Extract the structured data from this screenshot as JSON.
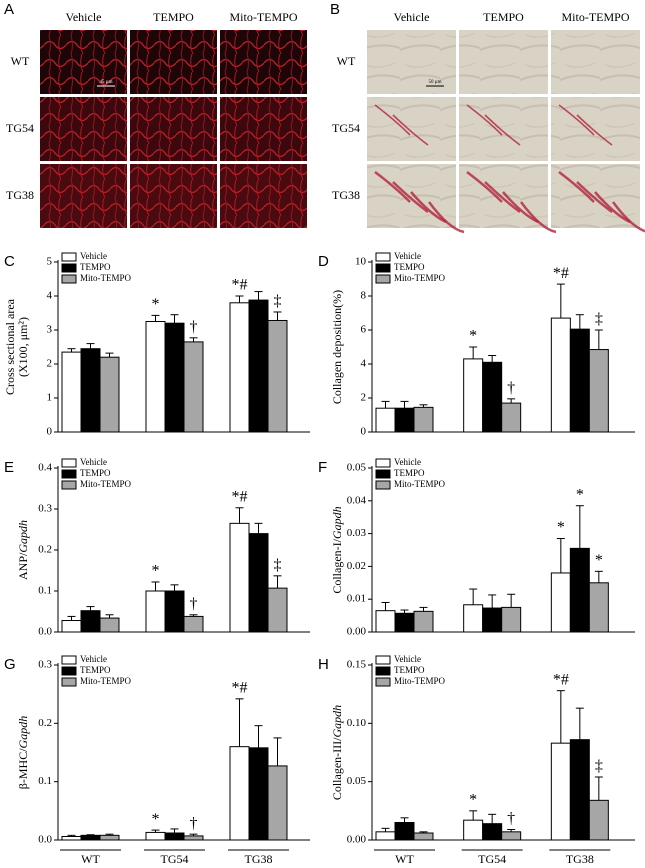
{
  "micrographs": [
    {
      "letter": "A",
      "columns": [
        "Vehicle",
        "TEMPO",
        "Mito-TEMPO"
      ],
      "rows": [
        "WT",
        "TG54",
        "TG38"
      ],
      "scale_bar": "45 µm"
    },
    {
      "letter": "B",
      "columns": [
        "Vehicle",
        "TEMPO",
        "Mito-TEMPO"
      ],
      "rows": [
        "WT",
        "TG54",
        "TG38"
      ],
      "scale_bar": "50 µm"
    }
  ],
  "chart_data": [
    {
      "type": "bar",
      "letter": "C",
      "ylabel": [
        [
          {
            "text": "Cross sectional area"
          }
        ],
        [
          {
            "text": "(X100, μm²)"
          }
        ]
      ],
      "categories": [
        null,
        null,
        null
      ],
      "ylim": [
        0,
        5
      ],
      "yticks": [
        0,
        1,
        2,
        3,
        4,
        5
      ],
      "legend": "upper left",
      "series": [
        {
          "name": "Vehicle",
          "color": "#ffffff",
          "values": [
            2.35,
            3.25,
            3.8
          ],
          "errors": [
            0.1,
            0.18,
            0.2
          ]
        },
        {
          "name": "TEMPO",
          "color": "#000000",
          "values": [
            2.45,
            3.2,
            3.88
          ],
          "errors": [
            0.15,
            0.25,
            0.25
          ]
        },
        {
          "name": "Mito-TEMPO",
          "color": "#a6a6a6",
          "values": [
            2.2,
            2.65,
            3.28
          ],
          "errors": [
            0.12,
            0.12,
            0.25
          ]
        }
      ],
      "annotations": [
        {
          "text": "*",
          "category": 1,
          "series": 0
        },
        {
          "text": "†",
          "category": 1,
          "series": 2
        },
        {
          "text": "*#",
          "category": 2,
          "series": 0
        },
        {
          "text": "‡",
          "category": 2,
          "series": 2
        }
      ]
    },
    {
      "type": "bar",
      "letter": "D",
      "ylabel": [
        [
          {
            "text": "Collagen deposition(%)"
          }
        ]
      ],
      "categories": [
        null,
        null,
        null
      ],
      "ylim": [
        0,
        10
      ],
      "yticks": [
        0,
        2,
        4,
        6,
        8,
        10
      ],
      "legend": "upper left",
      "series": [
        {
          "name": "Vehicle",
          "color": "#ffffff",
          "values": [
            1.4,
            4.3,
            6.7
          ],
          "errors": [
            0.4,
            0.7,
            2.0
          ]
        },
        {
          "name": "TEMPO",
          "color": "#000000",
          "values": [
            1.4,
            4.1,
            6.05
          ],
          "errors": [
            0.4,
            0.4,
            0.85
          ]
        },
        {
          "name": "Mito-TEMPO",
          "color": "#a6a6a6",
          "values": [
            1.45,
            1.7,
            4.85
          ],
          "errors": [
            0.15,
            0.25,
            1.15
          ]
        }
      ],
      "annotations": [
        {
          "text": "*",
          "category": 1,
          "series": 0
        },
        {
          "text": "†",
          "category": 1,
          "series": 2
        },
        {
          "text": "*#",
          "category": 2,
          "series": 0
        },
        {
          "text": "‡",
          "category": 2,
          "series": 2
        }
      ]
    },
    {
      "type": "bar",
      "letter": "E",
      "ylabel": [
        [
          {
            "text": "ANP/"
          },
          {
            "text": "Gapdh",
            "italic": true
          }
        ]
      ],
      "categories": [
        null,
        null,
        null
      ],
      "ylim": [
        0,
        0.4
      ],
      "yticks": [
        {
          "value": 0,
          "label": "0.0"
        },
        0.1,
        0.2,
        0.3,
        0.4
      ],
      "legend": "upper left",
      "series": [
        {
          "name": "Vehicle",
          "color": "#ffffff",
          "values": [
            0.028,
            0.1,
            0.265
          ],
          "errors": [
            0.01,
            0.022,
            0.038
          ]
        },
        {
          "name": "TEMPO",
          "color": "#000000",
          "values": [
            0.052,
            0.1,
            0.24
          ],
          "errors": [
            0.01,
            0.015,
            0.025
          ]
        },
        {
          "name": "Mito-TEMPO",
          "color": "#a6a6a6",
          "values": [
            0.034,
            0.038,
            0.107
          ],
          "errors": [
            0.008,
            0.004,
            0.03
          ]
        }
      ],
      "annotations": [
        {
          "text": "*",
          "category": 1,
          "series": 0
        },
        {
          "text": "†",
          "category": 1,
          "series": 2
        },
        {
          "text": "*#",
          "category": 2,
          "series": 0
        },
        {
          "text": "‡",
          "category": 2,
          "series": 2
        }
      ]
    },
    {
      "type": "bar",
      "letter": "F",
      "ylabel": [
        [
          {
            "text": "Collagen-I/"
          },
          {
            "text": "Gapdh",
            "italic": true
          }
        ]
      ],
      "categories": [
        null,
        null,
        null
      ],
      "ylim": [
        0,
        0.05
      ],
      "yticks": [
        {
          "value": 0,
          "label": "0.00"
        },
        0.01,
        0.02,
        0.03,
        0.04,
        0.05
      ],
      "legend": "upper left",
      "series": [
        {
          "name": "Vehicle",
          "color": "#ffffff",
          "values": [
            0.0065,
            0.0083,
            0.018
          ],
          "errors": [
            0.0025,
            0.0048,
            0.0105
          ]
        },
        {
          "name": "TEMPO",
          "color": "#000000",
          "values": [
            0.0057,
            0.0073,
            0.0255
          ],
          "errors": [
            0.001,
            0.004,
            0.013
          ]
        },
        {
          "name": "Mito-TEMPO",
          "color": "#a6a6a6",
          "values": [
            0.0063,
            0.0075,
            0.015
          ],
          "errors": [
            0.0012,
            0.004,
            0.0035
          ]
        }
      ],
      "annotations": [
        {
          "text": "*",
          "category": 2,
          "series": 0
        },
        {
          "text": "*",
          "category": 2,
          "series": 1
        },
        {
          "text": "*",
          "category": 2,
          "series": 2
        }
      ]
    },
    {
      "type": "bar",
      "letter": "G",
      "ylabel": [
        [
          {
            "text": "β-MHC/"
          },
          {
            "text": "Gapdh",
            "italic": true
          }
        ]
      ],
      "categories": [
        "WT",
        "TG54",
        "TG38"
      ],
      "ylim": [
        0,
        0.3
      ],
      "yticks": [
        {
          "value": 0,
          "label": "0.0"
        },
        0.1,
        0.2,
        0.3
      ],
      "legend": "upper left",
      "series": [
        {
          "name": "Vehicle",
          "color": "#ffffff",
          "values": [
            0.006,
            0.013,
            0.16
          ],
          "errors": [
            0.002,
            0.004,
            0.082
          ]
        },
        {
          "name": "TEMPO",
          "color": "#000000",
          "values": [
            0.008,
            0.012,
            0.158
          ],
          "errors": [
            0.001,
            0.007,
            0.038
          ]
        },
        {
          "name": "Mito-TEMPO",
          "color": "#a6a6a6",
          "values": [
            0.008,
            0.007,
            0.127
          ],
          "errors": [
            0.002,
            0.003,
            0.048
          ]
        }
      ],
      "annotations": [
        {
          "text": "*",
          "category": 1,
          "series": 0
        },
        {
          "text": "†",
          "category": 1,
          "series": 2
        },
        {
          "text": "*#",
          "category": 2,
          "series": 0
        }
      ]
    },
    {
      "type": "bar",
      "letter": "H",
      "ylabel": [
        [
          {
            "text": "Collagen-III/"
          },
          {
            "text": "Gapdh",
            "italic": true
          }
        ]
      ],
      "categories": [
        "WT",
        "TG54",
        "TG38"
      ],
      "ylim": [
        0,
        0.15
      ],
      "yticks": [
        {
          "value": 0,
          "label": "0.00"
        },
        0.05,
        {
          "value": 0.1,
          "label": "0.10"
        },
        0.15
      ],
      "legend": "upper left",
      "series": [
        {
          "name": "Vehicle",
          "color": "#ffffff",
          "values": [
            0.007,
            0.017,
            0.083
          ],
          "errors": [
            0.003,
            0.008,
            0.045
          ]
        },
        {
          "name": "TEMPO",
          "color": "#000000",
          "values": [
            0.015,
            0.014,
            0.086
          ],
          "errors": [
            0.004,
            0.008,
            0.027
          ]
        },
        {
          "name": "Mito-TEMPO",
          "color": "#a6a6a6",
          "values": [
            0.006,
            0.007,
            0.034
          ],
          "errors": [
            0.001,
            0.002,
            0.02
          ]
        }
      ],
      "annotations": [
        {
          "text": "*",
          "category": 1,
          "series": 0
        },
        {
          "text": "†",
          "category": 1,
          "series": 2
        },
        {
          "text": "*#",
          "category": 2,
          "series": 0
        },
        {
          "text": "‡",
          "category": 2,
          "series": 2
        }
      ]
    }
  ]
}
